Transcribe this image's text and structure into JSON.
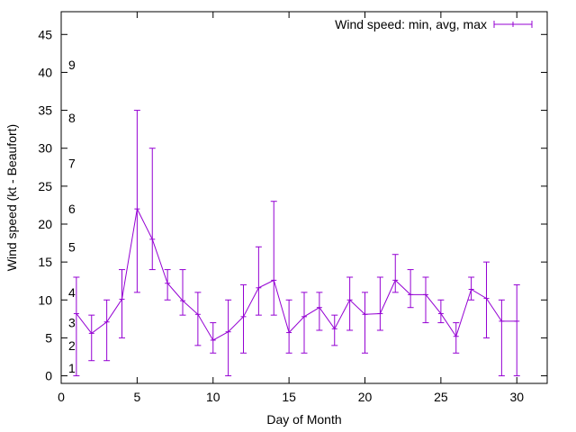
{
  "chart_data": {
    "type": "line",
    "title": "",
    "xlabel": "Day of Month",
    "ylabel": "Wind speed (kt - Beaufort)",
    "xlim": [
      0,
      32
    ],
    "ylim": [
      -1,
      48
    ],
    "x_ticks": [
      0,
      5,
      10,
      15,
      20,
      25,
      30
    ],
    "y_ticks": [
      0,
      5,
      10,
      15,
      20,
      25,
      30,
      35,
      40,
      45
    ],
    "grid": false,
    "legend_position": "top-right",
    "beaufort_scale": [
      {
        "label": "1",
        "kt": 1
      },
      {
        "label": "2",
        "kt": 4
      },
      {
        "label": "3",
        "kt": 7
      },
      {
        "label": "4",
        "kt": 11
      },
      {
        "label": "5",
        "kt": 17
      },
      {
        "label": "6",
        "kt": 22
      },
      {
        "label": "7",
        "kt": 28
      },
      {
        "label": "8",
        "kt": 34
      },
      {
        "label": "9",
        "kt": 41
      }
    ],
    "series": [
      {
        "name": "Wind speed: min, avg, max",
        "color": "#9400d3",
        "x": [
          1,
          2,
          3,
          4,
          5,
          6,
          7,
          8,
          9,
          10,
          11,
          12,
          13,
          14,
          15,
          16,
          17,
          18,
          19,
          20,
          21,
          22,
          23,
          24,
          25,
          26,
          27,
          28,
          29,
          30
        ],
        "avg": [
          8.2,
          5.6,
          7.1,
          10.1,
          22,
          18,
          12.2,
          9.9,
          8.1,
          4.7,
          5.8,
          7.8,
          11.6,
          12.6,
          5.7,
          7.8,
          9,
          6.2,
          10,
          8.1,
          8.2,
          12.6,
          10.7,
          10.7,
          8.2,
          5.2,
          11.4,
          10.2,
          7.2,
          7.2
        ],
        "min": [
          0,
          2,
          2,
          5,
          11,
          14,
          10,
          8,
          4,
          3,
          0,
          3,
          8,
          8,
          3,
          3,
          6,
          4,
          6,
          3,
          6,
          11,
          9,
          7,
          7,
          3,
          10,
          5,
          0,
          0
        ],
        "max": [
          13,
          8,
          10,
          14,
          35,
          30,
          14,
          14,
          11,
          7,
          10,
          12,
          17,
          23,
          10,
          11,
          11,
          8,
          13,
          11,
          13,
          16,
          14,
          13,
          10,
          7,
          13,
          15,
          10,
          12
        ]
      }
    ]
  }
}
